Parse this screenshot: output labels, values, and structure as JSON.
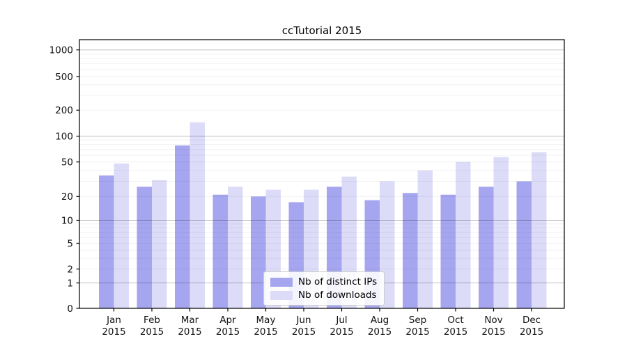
{
  "chart_data": {
    "type": "bar",
    "title": "ccTutorial 2015",
    "categories": [
      "Jan",
      "Feb",
      "Mar",
      "Apr",
      "May",
      "Jun",
      "Jul",
      "Aug",
      "Sep",
      "Oct",
      "Nov",
      "Dec"
    ],
    "category_year": "2015",
    "series": [
      {
        "name": "Nb of distinct IPs",
        "key": "distinct-ips",
        "color": "#a6a6f0",
        "values": [
          35,
          26,
          78,
          21,
          20,
          17,
          26,
          18,
          22,
          21,
          26,
          30
        ]
      },
      {
        "name": "Nb of downloads",
        "key": "downloads",
        "color": "#dcdcf8",
        "values": [
          48,
          31,
          145,
          26,
          24,
          24,
          34,
          30,
          40,
          50,
          57,
          65
        ]
      }
    ],
    "xlabel": "",
    "ylabel": "",
    "y_ticks": [
      0,
      1,
      2,
      5,
      10,
      20,
      50,
      100,
      200,
      500,
      1000
    ],
    "y_scale": "log-like (compressed toward zero, ticks 0,1,2,5,10,20,50,100,200,500,1000)",
    "ylim": [
      0,
      1300
    ],
    "grid": true,
    "grid_minor_values": [
      3,
      4,
      6,
      7,
      8,
      9,
      30,
      40,
      60,
      70,
      80,
      90,
      300,
      400,
      600,
      700,
      800,
      900
    ],
    "grid_major_values": [
      1,
      10,
      100,
      1000
    ],
    "legend_position": "lower center"
  }
}
